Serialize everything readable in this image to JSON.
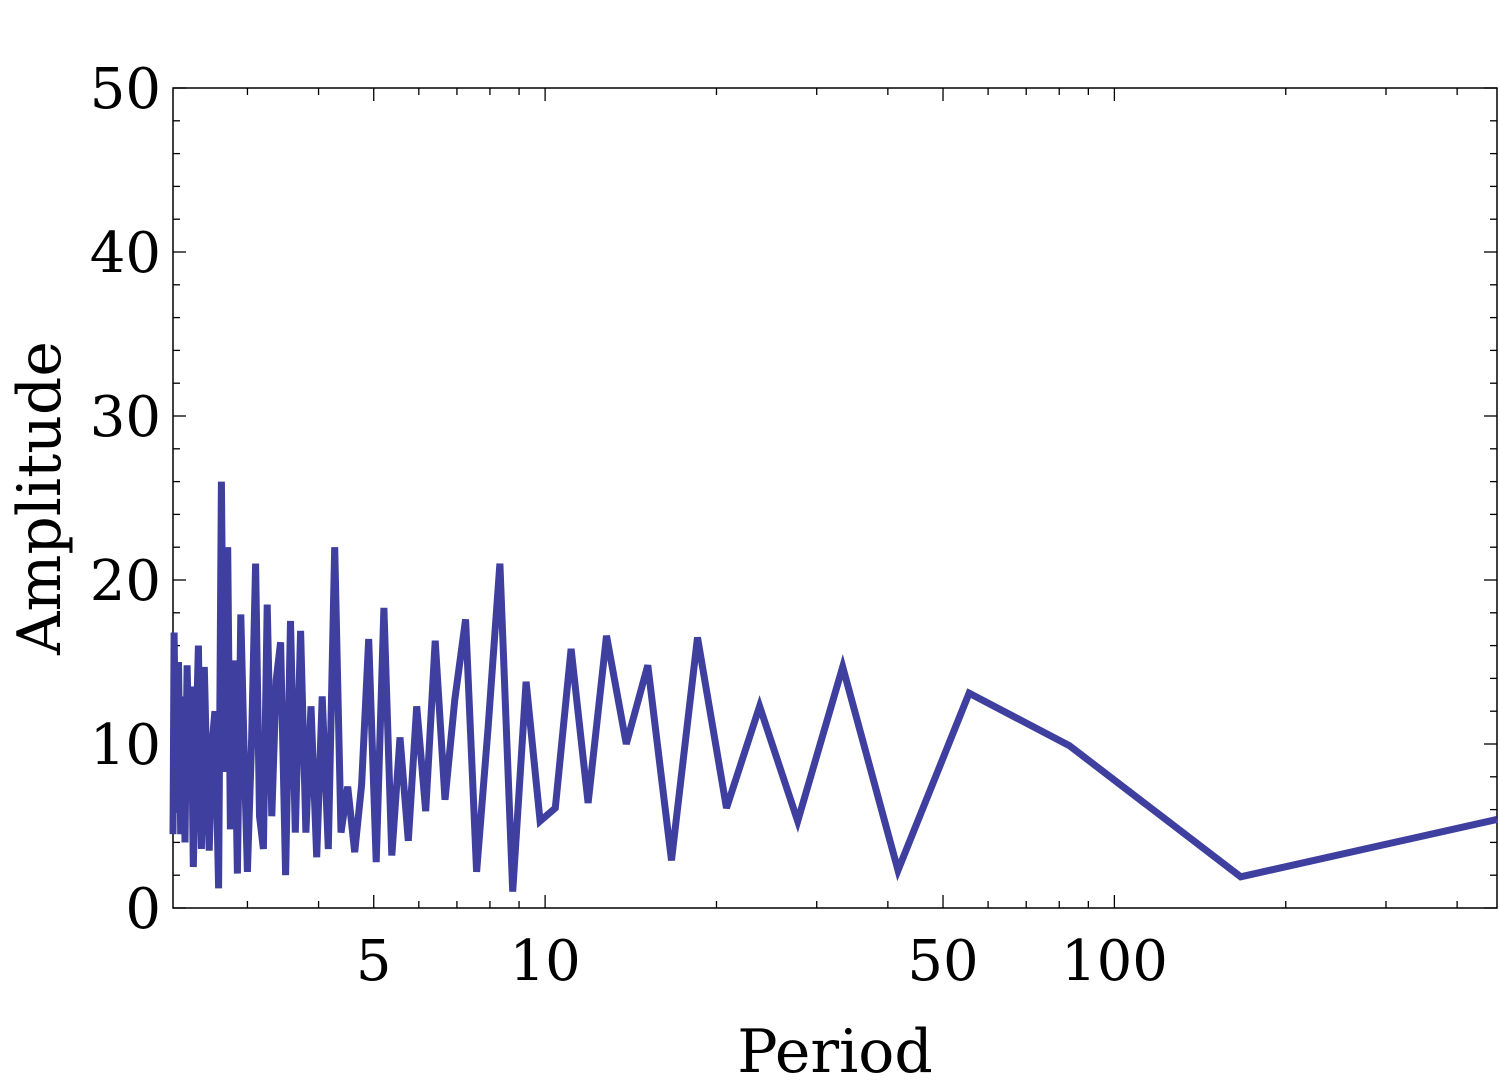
{
  "colors": {
    "series": "#3f3f9f",
    "axis": "#000000",
    "background": "#ffffff"
  },
  "chart_data": {
    "type": "line",
    "title": "",
    "xlabel": "Period",
    "ylabel": "Amplitude",
    "x_scale": "log",
    "xlim": [
      2.22,
      470
    ],
    "ylim": [
      0,
      50
    ],
    "grid": false,
    "x_ticks": [
      {
        "value": 5,
        "label": "5"
      },
      {
        "value": 10,
        "label": "10"
      },
      {
        "value": 50,
        "label": "50"
      },
      {
        "value": 100,
        "label": "100"
      }
    ],
    "y_ticks": [
      {
        "value": 0,
        "label": "0"
      },
      {
        "value": 10,
        "label": "10"
      },
      {
        "value": 20,
        "label": "20"
      },
      {
        "value": 30,
        "label": "30"
      },
      {
        "value": 40,
        "label": "40"
      },
      {
        "value": 50,
        "label": "50"
      }
    ],
    "series": [
      {
        "x": [
          2.22,
          2.23,
          2.25,
          2.27,
          2.29,
          2.31,
          2.33,
          2.35,
          2.37,
          2.39,
          2.41,
          2.44,
          2.46,
          2.49,
          2.52,
          2.55,
          2.57,
          2.6,
          2.63,
          2.67,
          2.7,
          2.73,
          2.77,
          2.8,
          2.84,
          2.88,
          2.92,
          2.96,
          3.0,
          3.05,
          3.1,
          3.15,
          3.2,
          3.25,
          3.31,
          3.37,
          3.43,
          3.5,
          3.57,
          3.64,
          3.72,
          3.8,
          3.88,
          3.97,
          4.06,
          4.16,
          4.27,
          4.38,
          4.5,
          4.63,
          4.76,
          4.9,
          5.05,
          5.21,
          5.38,
          5.56,
          5.75,
          5.95,
          6.17,
          6.41,
          6.67,
          6.94,
          7.25,
          7.58,
          7.94,
          8.33,
          8.77,
          9.26,
          9.8,
          10.42,
          11.11,
          11.9,
          12.82,
          13.89,
          15.15,
          16.67,
          18.52,
          20.83,
          23.81,
          27.78,
          33.33,
          41.67,
          55.56,
          83.33,
          166.67,
          470
        ],
        "y": [
          4.5,
          16.8,
          5.8,
          15.0,
          4.5,
          12.9,
          4.0,
          14.8,
          9.0,
          13.5,
          2.5,
          11.0,
          16.0,
          3.6,
          14.7,
          7.0,
          3.5,
          10.0,
          12.0,
          1.2,
          26.0,
          8.3,
          22.0,
          4.8,
          15.1,
          2.1,
          17.9,
          9.6,
          2.2,
          10.0,
          21.0,
          5.6,
          3.6,
          18.5,
          5.6,
          13.9,
          16.2,
          2.0,
          17.5,
          4.6,
          16.9,
          4.6,
          12.3,
          3.1,
          12.9,
          3.6,
          22.0,
          4.6,
          7.4,
          3.4,
          7.5,
          16.4,
          2.8,
          18.3,
          3.2,
          10.4,
          4.1,
          12.3,
          5.9,
          16.3,
          6.6,
          12.7,
          17.6,
          2.2,
          11.0,
          21.0,
          1.0,
          13.8,
          5.3,
          6.1,
          15.8,
          6.4,
          16.6,
          10.0,
          14.8,
          2.9,
          16.5,
          6.1,
          12.3,
          5.3,
          14.7,
          2.3,
          13.1,
          9.9,
          1.9,
          5.4
        ]
      }
    ]
  }
}
